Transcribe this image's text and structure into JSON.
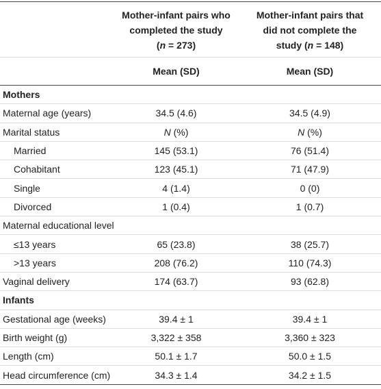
{
  "table": {
    "header": [
      {
        "lines": [
          [
            "Mother-infant pairs who"
          ],
          [
            "completed the study"
          ],
          [
            "(",
            {
              "text": "n",
              "italic": true
            },
            " = 273)"
          ]
        ]
      },
      {
        "lines": [
          [
            "Mother-infant pairs that"
          ],
          [
            "did not complete the"
          ],
          [
            "study (",
            {
              "text": "n",
              "italic": true
            },
            " = 148)"
          ]
        ]
      }
    ],
    "subheader": [
      "Mean (SD)",
      "Mean (SD)"
    ],
    "rows": [
      {
        "section": "Mothers"
      },
      {
        "label": "Maternal age (years)",
        "cells": [
          "34.5 (4.6)",
          "34.5 (4.9)"
        ]
      },
      {
        "label": "Marital status",
        "cells": [
          [
            {
              "text": "N",
              "italic": true
            },
            " (%)"
          ],
          [
            {
              "text": "N",
              "italic": true
            },
            " (%)"
          ]
        ]
      },
      {
        "label": "Married",
        "indent": true,
        "cells": [
          "145 (53.1)",
          "76 (51.4)"
        ]
      },
      {
        "label": "Cohabitant",
        "indent": true,
        "cells": [
          "123 (45.1)",
          "71 (47.9)"
        ]
      },
      {
        "label": "Single",
        "indent": true,
        "cells": [
          "4 (1.4)",
          "0 (0)"
        ]
      },
      {
        "label": "Divorced",
        "indent": true,
        "cells": [
          "1 (0.4)",
          "1 (0.7)"
        ]
      },
      {
        "label": "Maternal educational level",
        "cells": []
      },
      {
        "label": "≤13 years",
        "indent": true,
        "cells": [
          "65 (23.8)",
          "38 (25.7)"
        ]
      },
      {
        "label": ">13 years",
        "indent": true,
        "cells": [
          "208 (76.2)",
          "110 (74.3)"
        ]
      },
      {
        "label": "Vaginal delivery",
        "cells": [
          "174 (63.7)",
          "93 (62.8)"
        ]
      },
      {
        "section": "Infants"
      },
      {
        "label": "Gestational age (weeks)",
        "cells": [
          "39.4 ± 1",
          "39.4 ± 1"
        ]
      },
      {
        "label": "Birth weight (g)",
        "cells": [
          "3,322 ± 358",
          "3,360 ± 323"
        ]
      },
      {
        "label": "Length (cm)",
        "cells": [
          "50.1 ± 1.7",
          "50.0 ± 1.5"
        ]
      },
      {
        "label": "Head circumference (cm)",
        "cells": [
          "34.3 ± 1.4",
          "34.2 ± 1.5"
        ]
      }
    ]
  }
}
